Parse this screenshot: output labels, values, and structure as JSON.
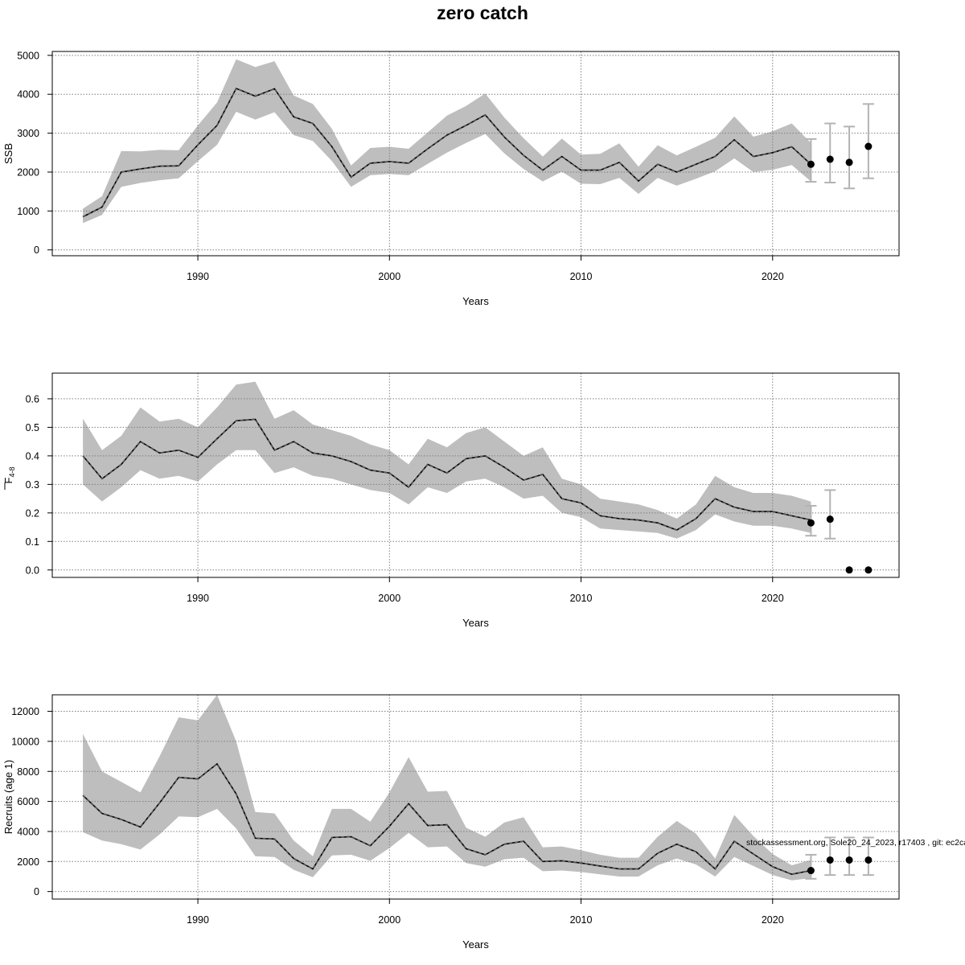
{
  "page": {
    "title": "zero catch"
  },
  "footnote": "stockassessment.org, Sole20_24_2023, r17403 , git: ec2ca",
  "colors": {
    "band": "#bebebe",
    "errorbar": "#b3b3b3",
    "line": "#000000",
    "grid": "#7f7f7f"
  },
  "chart_data": [
    {
      "type": "line",
      "id": "ssb",
      "ylabel": "SSB",
      "ylabel_sub": "",
      "xlabel": "Years",
      "xlim": [
        1982.4,
        2026.6
      ],
      "ylim": [
        -150,
        5100
      ],
      "x_ticks": [
        1990,
        2000,
        2010,
        2020
      ],
      "y_ticks": [
        0,
        1000,
        2000,
        3000,
        4000,
        5000
      ],
      "y_tick_labels": [
        "0",
        "1000",
        "2000",
        "3000",
        "4000",
        "5000"
      ],
      "x_tick_labels": [
        "1990",
        "2000",
        "2010",
        "2020"
      ],
      "years": [
        1984,
        1985,
        1986,
        1987,
        1988,
        1989,
        1990,
        1991,
        1992,
        1993,
        1994,
        1995,
        1996,
        1997,
        1998,
        1999,
        2000,
        2001,
        2002,
        2003,
        2004,
        2005,
        2006,
        2007,
        2008,
        2009,
        2010,
        2011,
        2012,
        2013,
        2014,
        2015,
        2016,
        2017,
        2018,
        2019,
        2020,
        2021,
        2022
      ],
      "estimate": [
        850,
        1100,
        2000,
        2080,
        2150,
        2160,
        2700,
        3200,
        4150,
        3950,
        4140,
        3420,
        3250,
        2650,
        1870,
        2230,
        2270,
        2230,
        2600,
        2950,
        3200,
        3470,
        2900,
        2430,
        2050,
        2400,
        2050,
        2050,
        2250,
        1770,
        2200,
        2000,
        2200,
        2400,
        2830,
        2400,
        2500,
        2650,
        2200
      ],
      "lower": [
        690,
        900,
        1620,
        1720,
        1790,
        1840,
        2280,
        2700,
        3550,
        3350,
        3540,
        2950,
        2800,
        2280,
        1620,
        1920,
        1950,
        1920,
        2210,
        2500,
        2750,
        2980,
        2480,
        2080,
        1760,
        2010,
        1700,
        1690,
        1850,
        1440,
        1850,
        1650,
        1830,
        2020,
        2350,
        2000,
        2060,
        2180,
        1760
      ],
      "upper": [
        1060,
        1380,
        2540,
        2530,
        2570,
        2560,
        3200,
        3790,
        4900,
        4700,
        4850,
        3970,
        3750,
        3110,
        2170,
        2620,
        2650,
        2600,
        3020,
        3450,
        3700,
        4020,
        3400,
        2870,
        2400,
        2860,
        2450,
        2470,
        2740,
        2140,
        2690,
        2430,
        2650,
        2880,
        3430,
        2910,
        3050,
        3250,
        2750
      ],
      "forecast": [
        {
          "year": 2022,
          "median": 2200,
          "low": 1750,
          "high": 2850
        },
        {
          "year": 2023,
          "median": 2330,
          "low": 1730,
          "high": 3250
        },
        {
          "year": 2024,
          "median": 2250,
          "low": 1580,
          "high": 3170
        },
        {
          "year": 2025,
          "median": 2660,
          "low": 1840,
          "high": 3750
        }
      ]
    },
    {
      "type": "line",
      "id": "fbar",
      "ylabel": "F",
      "ylabel_sub": "4-8",
      "xlabel": "Years",
      "xlim": [
        1982.4,
        2026.6
      ],
      "ylim": [
        -0.026,
        0.69
      ],
      "x_ticks": [
        1990,
        2000,
        2010,
        2020
      ],
      "y_ticks": [
        0,
        0.1,
        0.2,
        0.3,
        0.4,
        0.5,
        0.6
      ],
      "y_tick_labels": [
        "0.0",
        "0.1",
        "0.2",
        "0.3",
        "0.4",
        "0.5",
        "0.6"
      ],
      "x_tick_labels": [
        "1990",
        "2000",
        "2010",
        "2020"
      ],
      "years": [
        1984,
        1985,
        1986,
        1987,
        1988,
        1989,
        1990,
        1991,
        1992,
        1993,
        1994,
        1995,
        1996,
        1997,
        1998,
        1999,
        2000,
        2001,
        2002,
        2003,
        2004,
        2005,
        2006,
        2007,
        2008,
        2009,
        2010,
        2011,
        2012,
        2013,
        2014,
        2015,
        2016,
        2017,
        2018,
        2019,
        2020,
        2021,
        2022
      ],
      "estimate": [
        0.4,
        0.32,
        0.37,
        0.45,
        0.41,
        0.42,
        0.395,
        0.46,
        0.523,
        0.528,
        0.42,
        0.45,
        0.41,
        0.4,
        0.38,
        0.35,
        0.34,
        0.29,
        0.37,
        0.34,
        0.39,
        0.4,
        0.36,
        0.315,
        0.335,
        0.25,
        0.235,
        0.19,
        0.18,
        0.175,
        0.165,
        0.14,
        0.18,
        0.25,
        0.22,
        0.205,
        0.205,
        0.19,
        0.175
      ],
      "lower": [
        0.3,
        0.24,
        0.29,
        0.35,
        0.32,
        0.33,
        0.31,
        0.37,
        0.42,
        0.42,
        0.34,
        0.36,
        0.33,
        0.32,
        0.3,
        0.28,
        0.27,
        0.23,
        0.29,
        0.27,
        0.31,
        0.32,
        0.29,
        0.25,
        0.26,
        0.2,
        0.185,
        0.145,
        0.14,
        0.135,
        0.13,
        0.11,
        0.14,
        0.195,
        0.17,
        0.155,
        0.155,
        0.145,
        0.13
      ],
      "upper": [
        0.53,
        0.42,
        0.47,
        0.57,
        0.52,
        0.53,
        0.5,
        0.57,
        0.65,
        0.66,
        0.53,
        0.56,
        0.51,
        0.49,
        0.47,
        0.44,
        0.42,
        0.37,
        0.46,
        0.43,
        0.48,
        0.5,
        0.45,
        0.4,
        0.43,
        0.32,
        0.3,
        0.25,
        0.24,
        0.23,
        0.21,
        0.18,
        0.23,
        0.33,
        0.29,
        0.27,
        0.27,
        0.26,
        0.24
      ],
      "forecast": [
        {
          "year": 2022,
          "median": 0.165,
          "low": 0.12,
          "high": 0.225
        },
        {
          "year": 2023,
          "median": 0.178,
          "low": 0.11,
          "high": 0.28
        },
        {
          "year": 2024,
          "median": 0.0,
          "low": 0.0,
          "high": 0.0
        },
        {
          "year": 2025,
          "median": 0.0,
          "low": 0.0,
          "high": 0.0
        }
      ]
    },
    {
      "type": "line",
      "id": "recruits",
      "ylabel": "Recruits (age 1)",
      "ylabel_sub": "",
      "xlabel": "Years",
      "xlim": [
        1982.4,
        2026.6
      ],
      "ylim": [
        -500,
        13100
      ],
      "x_ticks": [
        1990,
        2000,
        2010,
        2020
      ],
      "y_ticks": [
        0,
        2000,
        4000,
        6000,
        8000,
        10000,
        12000
      ],
      "y_tick_labels": [
        "0",
        "2000",
        "4000",
        "6000",
        "8000",
        "10000",
        "12000"
      ],
      "x_tick_labels": [
        "1990",
        "2000",
        "2010",
        "2020"
      ],
      "years": [
        1984,
        1985,
        1986,
        1987,
        1988,
        1989,
        1990,
        1991,
        1992,
        1993,
        1994,
        1995,
        1996,
        1997,
        1998,
        1999,
        2000,
        2001,
        2002,
        2003,
        2004,
        2005,
        2006,
        2007,
        2008,
        2009,
        2010,
        2011,
        2012,
        2013,
        2014,
        2015,
        2016,
        2017,
        2018,
        2019,
        2020,
        2021,
        2022
      ],
      "estimate": [
        6400,
        5200,
        4800,
        4300,
        5900,
        7600,
        7500,
        8500,
        6500,
        3550,
        3500,
        2200,
        1500,
        3600,
        3650,
        3050,
        4350,
        5850,
        4400,
        4450,
        2850,
        2450,
        3150,
        3350,
        2000,
        2050,
        1900,
        1700,
        1500,
        1500,
        2550,
        3150,
        2650,
        1500,
        3350,
        2500,
        1650,
        1150,
        1400
      ],
      "lower": [
        3950,
        3400,
        3150,
        2800,
        3800,
        5000,
        4950,
        5500,
        4200,
        2350,
        2300,
        1450,
        950,
        2400,
        2450,
        2050,
        2900,
        3900,
        2950,
        3000,
        1900,
        1650,
        2150,
        2250,
        1350,
        1400,
        1300,
        1150,
        1000,
        1000,
        1750,
        2200,
        1800,
        1000,
        2300,
        1700,
        1100,
        750,
        900
      ],
      "upper": [
        10500,
        8000,
        7300,
        6600,
        9000,
        11600,
        11400,
        13100,
        10000,
        5300,
        5200,
        3400,
        2350,
        5500,
        5500,
        4650,
        6600,
        8950,
        6650,
        6700,
        4250,
        3650,
        4600,
        4950,
        2950,
        3000,
        2750,
        2450,
        2250,
        2250,
        3650,
        4700,
        3850,
        2200,
        5100,
        3700,
        2500,
        1750,
        2100
      ],
      "forecast": [
        {
          "year": 2022,
          "median": 1400,
          "low": 850,
          "high": 2450
        },
        {
          "year": 2023,
          "median": 2100,
          "low": 1100,
          "high": 3600
        },
        {
          "year": 2024,
          "median": 2100,
          "low": 1100,
          "high": 3600
        },
        {
          "year": 2025,
          "median": 2100,
          "low": 1100,
          "high": 3600
        }
      ]
    }
  ]
}
